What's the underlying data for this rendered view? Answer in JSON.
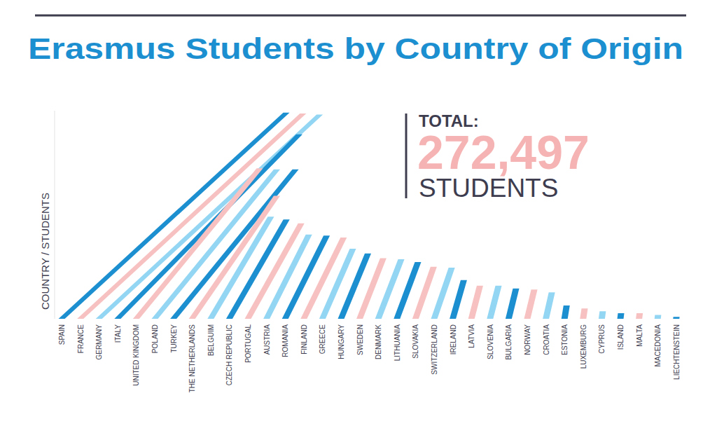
{
  "chart_data": {
    "type": "bar",
    "title": "Erasmus Students by Country of Origin",
    "ylabel": "COUNTRY / STUDENTS",
    "total_title": "TOTAL:",
    "total": {
      "value": 272497,
      "label": "272,497"
    },
    "total_unit": "STUDENTS",
    "categories": [
      "SPAIN",
      "FRANCE",
      "GERMANY",
      "ITALY",
      "UNITED KINGDOM",
      "POLAND",
      "TURKEY",
      "THE NETHERLANDS",
      "BELGUIM",
      "CZECH REPUBLIC",
      "PORTUGAL",
      "AUSTRIA",
      "ROMANIA",
      "FINLAND",
      "GREECE",
      "HUNGARY",
      "SWEDEN",
      "DENMARK",
      "LITHUANIA",
      "SLOVAKIA",
      "SWITZERLAND",
      "IRELAND",
      "LATVIA",
      "SLOVENIA",
      "BULGARIA",
      "NORWAY",
      "CROATIA",
      "ESTONIA",
      "LUXEMBURG",
      "CYPRUS",
      "ISLAND",
      "MALTA",
      "MACEDONIA",
      "LIECHTENSTEIN"
    ],
    "values": [
      21800,
      21700,
      21600,
      19500,
      15900,
      15800,
      15800,
      13000,
      10800,
      10500,
      10100,
      8900,
      8800,
      8600,
      7400,
      6900,
      6400,
      6300,
      6000,
      5500,
      5400,
      4100,
      3500,
      3500,
      3200,
      3100,
      2800,
      1400,
      1100,
      800,
      600,
      600,
      400,
      200
    ],
    "colors": [
      "#1c8fd0",
      "#f6c1c0",
      "#93d6f3",
      "#1c8fd0",
      "#f6c1c0",
      "#93d6f3",
      "#1c8fd0",
      "#f6c1c0",
      "#93d6f3",
      "#1c8fd0",
      "#f6c1c0",
      "#93d6f3",
      "#1c8fd0",
      "#f6c1c0",
      "#93d6f3",
      "#1c8fd0",
      "#f6c1c0",
      "#93d6f3",
      "#1c8fd0",
      "#f6c1c0",
      "#93d6f3",
      "#1c8fd0",
      "#f6c1c0",
      "#93d6f3",
      "#1c8fd0",
      "#f6c1c0",
      "#93d6f3",
      "#1c8fd0",
      "#f6c1c0",
      "#93d6f3",
      "#1c8fd0",
      "#f6c1c0",
      "#93d6f3",
      "#1c8fd0"
    ],
    "ylim": [
      0,
      22000
    ],
    "tick_labels": "x",
    "grid": false
  }
}
